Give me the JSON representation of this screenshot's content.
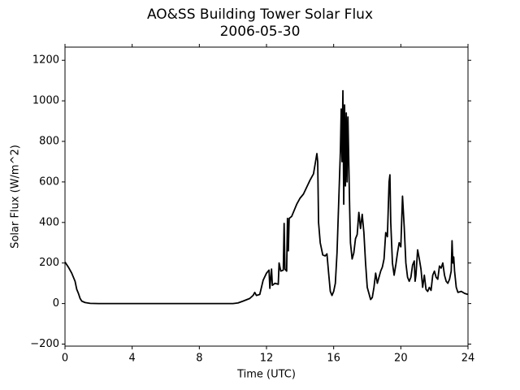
{
  "chart_data": {
    "type": "line",
    "title": "AO&SS Building Tower Solar Flux",
    "subtitle": "2006-05-30",
    "x_label": "Time (UTC)",
    "y_label": "Solar Flux (W/m^2)",
    "xlim": [
      0,
      24
    ],
    "xticks": [
      0,
      4,
      8,
      12,
      16,
      20,
      24
    ],
    "ylim": [
      -210,
      1265
    ],
    "yticks": [
      {
        "value": -200,
        "label": "−200"
      },
      0,
      200,
      400,
      600,
      800,
      1000,
      1200
    ],
    "grid": false,
    "series": [
      {
        "name": "Solar Flux",
        "color": "#000000",
        "x": [
          0,
          0.2,
          0.4,
          0.6,
          0.7,
          0.8,
          0.9,
          1.0,
          1.2,
          1.5,
          2,
          4,
          6,
          8,
          10,
          10.3,
          10.6,
          11,
          11.2,
          11.3,
          11.4,
          11.6,
          11.8,
          12,
          12.15,
          12.2,
          12.3,
          12.35,
          12.5,
          12.7,
          12.75,
          12.85,
          13,
          13.05,
          13.1,
          13.2,
          13.25,
          13.3,
          13.35,
          13.5,
          13.8,
          14,
          14.2,
          14.4,
          14.6,
          14.8,
          14.9,
          15,
          15.05,
          15.1,
          15.2,
          15.35,
          15.5,
          15.6,
          15.7,
          15.8,
          15.9,
          16,
          16.1,
          16.2,
          16.3,
          16.4,
          16.45,
          16.5,
          16.55,
          16.6,
          16.65,
          16.7,
          16.75,
          16.8,
          16.85,
          16.9,
          16.95,
          17,
          17.1,
          17.2,
          17.3,
          17.4,
          17.5,
          17.6,
          17.7,
          17.8,
          17.9,
          18,
          18.1,
          18.2,
          18.3,
          18.4,
          18.5,
          18.6,
          18.7,
          18.8,
          18.9,
          19,
          19.1,
          19.2,
          19.3,
          19.35,
          19.4,
          19.5,
          19.6,
          19.7,
          19.8,
          19.9,
          20,
          20.1,
          20.2,
          20.3,
          20.4,
          20.5,
          20.6,
          20.7,
          20.8,
          20.85,
          20.9,
          21,
          21.1,
          21.2,
          21.3,
          21.4,
          21.5,
          21.6,
          21.7,
          21.8,
          21.9,
          22,
          22.1,
          22.2,
          22.3,
          22.4,
          22.5,
          22.6,
          22.7,
          22.8,
          22.9,
          23,
          23.05,
          23.1,
          23.15,
          23.2,
          23.3,
          23.4,
          23.6,
          23.8,
          24
        ],
        "values": [
          205,
          180,
          150,
          110,
          70,
          50,
          25,
          12,
          5,
          1,
          0,
          0,
          0,
          0,
          0,
          3,
          12,
          25,
          40,
          55,
          40,
          45,
          115,
          150,
          165,
          75,
          170,
          90,
          100,
          95,
          200,
          160,
          165,
          395,
          170,
          160,
          420,
          260,
          420,
          430,
          490,
          520,
          540,
          575,
          610,
          640,
          690,
          740,
          700,
          400,
          300,
          240,
          235,
          245,
          150,
          60,
          40,
          60,
          100,
          250,
          500,
          750,
          960,
          700,
          1050,
          490,
          980,
          580,
          940,
          600,
          920,
          700,
          480,
          300,
          220,
          250,
          320,
          340,
          450,
          370,
          440,
          350,
          200,
          80,
          50,
          20,
          30,
          80,
          150,
          100,
          130,
          160,
          180,
          220,
          350,
          330,
          600,
          635,
          400,
          200,
          140,
          190,
          250,
          300,
          280,
          530,
          380,
          200,
          130,
          110,
          130,
          190,
          210,
          110,
          140,
          265,
          220,
          170,
          80,
          140,
          70,
          60,
          80,
          65,
          140,
          160,
          130,
          120,
          185,
          175,
          200,
          140,
          110,
          100,
          120,
          160,
          310,
          200,
          230,
          160,
          80,
          55,
          60,
          50,
          45
        ]
      }
    ]
  }
}
